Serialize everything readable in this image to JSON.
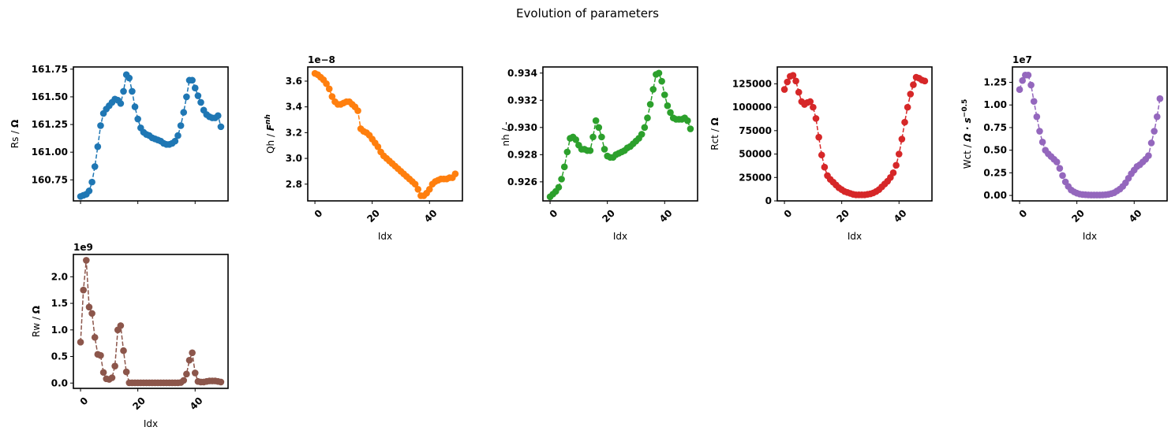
{
  "figure_title": "Evolution of parameters",
  "chart_data": [
    {
      "type": "line",
      "xlabel": "",
      "ylabel": "Rs / Ω",
      "ylabel_parts": [
        {
          "t": "Rs / "
        },
        {
          "t": "Ω",
          "b": true
        }
      ],
      "xlim": [
        -2.5,
        51.5
      ],
      "ylim": [
        160.56,
        161.77
      ],
      "xticks": [
        0,
        20,
        40
      ],
      "xticklabels": [
        "",
        "",
        ""
      ],
      "show_xticklabels": false,
      "yticks": [
        160.75,
        161.0,
        161.25,
        161.5,
        161.75
      ],
      "yticklabels": [
        "160.75",
        "161.00",
        "161.25",
        "161.50",
        "161.75"
      ],
      "offset": "",
      "color": "#1f77b4",
      "series": [
        {
          "x": [
            0,
            1,
            2,
            3,
            4,
            5,
            6,
            7,
            8,
            9,
            10,
            11,
            12,
            13,
            14,
            15,
            16,
            17,
            18,
            19,
            20,
            21,
            22,
            23,
            24,
            25,
            26,
            27,
            28,
            29,
            30,
            31,
            32,
            33,
            34,
            35,
            36,
            37,
            38,
            39,
            40,
            41,
            42,
            43,
            44,
            45,
            46,
            47,
            48,
            49
          ],
          "y": [
            160.6,
            160.61,
            160.62,
            160.65,
            160.73,
            160.87,
            161.05,
            161.24,
            161.35,
            161.39,
            161.42,
            161.45,
            161.48,
            161.47,
            161.44,
            161.55,
            161.7,
            161.67,
            161.55,
            161.41,
            161.3,
            161.22,
            161.18,
            161.16,
            161.15,
            161.13,
            161.12,
            161.11,
            161.1,
            161.08,
            161.07,
            161.07,
            161.08,
            161.1,
            161.15,
            161.24,
            161.36,
            161.5,
            161.65,
            161.65,
            161.58,
            161.51,
            161.45,
            161.38,
            161.34,
            161.32,
            161.31,
            161.31,
            161.33,
            161.23
          ]
        }
      ]
    },
    {
      "type": "line",
      "xlabel": "Idx",
      "ylabel": "Qh / F^nh",
      "ylabel_parts": [
        {
          "t": "Qh / "
        },
        {
          "t": "F",
          "b": true,
          "i": true
        },
        {
          "t": "nh",
          "sup": true,
          "b": true,
          "i": true
        }
      ],
      "xlim": [
        -2.5,
        51.5
      ],
      "ylim": [
        2.67e-08,
        3.71e-08
      ],
      "xticks": [
        0,
        20,
        40
      ],
      "xticklabels": [
        "0",
        "20",
        "40"
      ],
      "show_xticklabels": true,
      "yticks": [
        2.8e-08,
        3e-08,
        3.2e-08,
        3.4e-08,
        3.6e-08
      ],
      "yticklabels": [
        "2.8",
        "3.0",
        "3.2",
        "3.4",
        "3.6"
      ],
      "offset": "1e−8",
      "color": "#ff7f0e",
      "series": [
        {
          "x": [
            0,
            1,
            2,
            3,
            4,
            5,
            6,
            7,
            8,
            9,
            10,
            11,
            12,
            13,
            14,
            15,
            16,
            17,
            18,
            19,
            20,
            21,
            22,
            23,
            24,
            25,
            26,
            27,
            28,
            29,
            30,
            31,
            32,
            33,
            34,
            35,
            36,
            37,
            38,
            39,
            40,
            41,
            42,
            43,
            44,
            45,
            46,
            47,
            48,
            49
          ],
          "y": [
            3.66e-08,
            3.65e-08,
            3.63e-08,
            3.61e-08,
            3.58e-08,
            3.54e-08,
            3.48e-08,
            3.44e-08,
            3.42e-08,
            3.42e-08,
            3.43e-08,
            3.44e-08,
            3.44e-08,
            3.42e-08,
            3.4e-08,
            3.37e-08,
            3.23e-08,
            3.21e-08,
            3.2e-08,
            3.18e-08,
            3.15e-08,
            3.12e-08,
            3.09e-08,
            3.05e-08,
            3.02e-08,
            3e-08,
            2.98e-08,
            2.96e-08,
            2.94e-08,
            2.92e-08,
            2.9e-08,
            2.88e-08,
            2.86e-08,
            2.84e-08,
            2.82e-08,
            2.8e-08,
            2.76e-08,
            2.71e-08,
            2.71e-08,
            2.73e-08,
            2.76e-08,
            2.8e-08,
            2.82e-08,
            2.83e-08,
            2.84e-08,
            2.84e-08,
            2.84e-08,
            2.85e-08,
            2.85e-08,
            2.88e-08
          ]
        }
      ]
    },
    {
      "type": "line",
      "xlabel": "Idx",
      "ylabel": "nh / -",
      "ylabel_parts": [
        {
          "t": "nh / -"
        }
      ],
      "xlim": [
        -2.5,
        51.5
      ],
      "ylim": [
        0.9246,
        0.93445
      ],
      "xticks": [
        0,
        20,
        40
      ],
      "xticklabels": [
        "0",
        "20",
        "40"
      ],
      "show_xticklabels": true,
      "yticks": [
        0.926,
        0.928,
        0.93,
        0.932,
        0.934
      ],
      "yticklabels": [
        "0.926",
        "0.928",
        "0.930",
        "0.932",
        "0.934"
      ],
      "offset": "",
      "color": "#2ca02c",
      "series": [
        {
          "x": [
            0,
            1,
            2,
            3,
            4,
            5,
            6,
            7,
            8,
            9,
            10,
            11,
            12,
            13,
            14,
            15,
            16,
            17,
            18,
            19,
            20,
            21,
            22,
            23,
            24,
            25,
            26,
            27,
            28,
            29,
            30,
            31,
            32,
            33,
            34,
            35,
            36,
            37,
            38,
            39,
            40,
            41,
            42,
            43,
            44,
            45,
            46,
            47,
            48,
            49
          ],
          "y": [
            0.9249,
            0.9251,
            0.9253,
            0.9256,
            0.9262,
            0.9271,
            0.9282,
            0.9292,
            0.9293,
            0.9291,
            0.9287,
            0.9284,
            0.9284,
            0.9283,
            0.9283,
            0.9293,
            0.9305,
            0.93,
            0.9293,
            0.9284,
            0.9279,
            0.9278,
            0.9278,
            0.928,
            0.9281,
            0.9282,
            0.9283,
            0.9285,
            0.9286,
            0.9288,
            0.929,
            0.9292,
            0.9295,
            0.93,
            0.9307,
            0.9317,
            0.9328,
            0.9339,
            0.934,
            0.9334,
            0.9324,
            0.9316,
            0.9311,
            0.9307,
            0.9306,
            0.9306,
            0.9306,
            0.9307,
            0.9305,
            0.9299
          ]
        }
      ]
    },
    {
      "type": "line",
      "xlabel": "Idx",
      "ylabel": "Rct / Ω",
      "ylabel_parts": [
        {
          "t": "Rct / "
        },
        {
          "t": "Ω",
          "b": true
        }
      ],
      "xlim": [
        -2.5,
        51.5
      ],
      "ylim": [
        0,
        143000
      ],
      "xticks": [
        0,
        20,
        40
      ],
      "xticklabels": [
        "0",
        "20",
        "40"
      ],
      "show_xticklabels": true,
      "yticks": [
        0,
        25000,
        50000,
        75000,
        100000,
        125000
      ],
      "yticklabels": [
        "0",
        "25000",
        "50000",
        "75000",
        "100000",
        "125000"
      ],
      "offset": "",
      "color": "#d62728",
      "series": [
        {
          "x": [
            0,
            1,
            2,
            3,
            4,
            5,
            6,
            7,
            8,
            9,
            10,
            11,
            12,
            13,
            14,
            15,
            16,
            17,
            18,
            19,
            20,
            21,
            22,
            23,
            24,
            25,
            26,
            27,
            28,
            29,
            30,
            31,
            32,
            33,
            34,
            35,
            36,
            37,
            38,
            39,
            40,
            41,
            42,
            43,
            44,
            45,
            46,
            47,
            48,
            49
          ],
          "y": [
            119000,
            127000,
            133000,
            134000,
            128000,
            116000,
            106000,
            103000,
            105000,
            106000,
            100000,
            88000,
            68000,
            49000,
            36000,
            27000,
            23000,
            20000,
            17000,
            14000,
            12000,
            10000,
            9000,
            8000,
            7000,
            6500,
            6500,
            6500,
            6500,
            7000,
            7500,
            8500,
            10000,
            12000,
            15000,
            18000,
            21000,
            25000,
            30000,
            38000,
            50000,
            66000,
            84000,
            100000,
            114000,
            124000,
            132000,
            131000,
            129000,
            128000
          ]
        }
      ]
    },
    {
      "type": "line",
      "xlabel": "Idx",
      "ylabel": "Wct / Ω·s^-0.5",
      "ylabel_parts": [
        {
          "t": "Wct / "
        },
        {
          "t": "Ω · s",
          "b": true,
          "i": true
        },
        {
          "t": "−0.5",
          "sup": true,
          "b": true
        }
      ],
      "xlim": [
        -2.5,
        51.5
      ],
      "ylim": [
        -600000,
        14200000
      ],
      "xticks": [
        0,
        20,
        40
      ],
      "xticklabels": [
        "0",
        "20",
        "40"
      ],
      "show_xticklabels": true,
      "yticks": [
        0,
        2500000,
        5000000,
        7500000,
        10000000,
        12500000
      ],
      "yticklabels": [
        "0.00",
        "0.25",
        "0.50",
        "0.75",
        "1.00",
        "1.25"
      ],
      "offset": "1e7",
      "color": "#9467bd",
      "series": [
        {
          "x": [
            0,
            1,
            2,
            3,
            4,
            5,
            6,
            7,
            8,
            9,
            10,
            11,
            12,
            13,
            14,
            15,
            16,
            17,
            18,
            19,
            20,
            21,
            22,
            23,
            24,
            25,
            26,
            27,
            28,
            29,
            30,
            31,
            32,
            33,
            34,
            35,
            36,
            37,
            38,
            39,
            40,
            41,
            42,
            43,
            44,
            45,
            46,
            47,
            48,
            49
          ],
          "y": [
            11700000,
            12700000,
            13300000,
            13300000,
            12200000,
            10400000,
            8700000,
            7100000,
            5900000,
            5000000,
            4600000,
            4300000,
            4000000,
            3700000,
            3000000,
            2200000,
            1500000,
            1000000,
            600000,
            400000,
            250000,
            150000,
            100000,
            80000,
            60000,
            50000,
            50000,
            50000,
            50000,
            60000,
            80000,
            120000,
            200000,
            300000,
            500000,
            700000,
            1000000,
            1400000,
            1900000,
            2400000,
            2800000,
            3200000,
            3400000,
            3700000,
            4000000,
            4400000,
            5800000,
            7100000,
            8700000,
            10700000
          ]
        }
      ]
    },
    {
      "type": "line",
      "xlabel": "Idx",
      "ylabel": "Rw / Ω",
      "ylabel_parts": [
        {
          "t": "Rw / "
        },
        {
          "t": "Ω",
          "b": true
        }
      ],
      "xlim": [
        -2.5,
        51.5
      ],
      "ylim": [
        -100000000,
        2420000000
      ],
      "xticks": [
        0,
        20,
        40
      ],
      "xticklabels": [
        "0",
        "20",
        "40"
      ],
      "show_xticklabels": true,
      "yticks": [
        0,
        500000000,
        1000000000,
        1500000000,
        2000000000
      ],
      "yticklabels": [
        "0.0",
        "0.5",
        "1.0",
        "1.5",
        "2.0"
      ],
      "offset": "1e9",
      "color": "#8c564b",
      "series": [
        {
          "x": [
            0,
            1,
            2,
            3,
            4,
            5,
            6,
            7,
            8,
            9,
            10,
            11,
            12,
            13,
            14,
            15,
            16,
            17,
            18,
            19,
            20,
            21,
            22,
            23,
            24,
            25,
            26,
            27,
            28,
            29,
            30,
            31,
            32,
            33,
            34,
            35,
            36,
            37,
            38,
            39,
            40,
            41,
            42,
            43,
            44,
            45,
            46,
            47,
            48,
            49
          ],
          "y": [
            770000000,
            1750000000,
            2310000000,
            1430000000,
            1310000000,
            860000000,
            540000000,
            520000000,
            200000000,
            80000000,
            70000000,
            100000000,
            320000000,
            1000000000,
            1080000000,
            610000000,
            210000000,
            5000000,
            5000000,
            5000000,
            5000000,
            5000000,
            5000000,
            5000000,
            5000000,
            5000000,
            5000000,
            5000000,
            5000000,
            5000000,
            5000000,
            5000000,
            5000000,
            5000000,
            5000000,
            10000000,
            50000000,
            170000000,
            430000000,
            570000000,
            190000000,
            30000000,
            20000000,
            20000000,
            30000000,
            40000000,
            40000000,
            40000000,
            30000000,
            20000000
          ]
        }
      ]
    }
  ]
}
